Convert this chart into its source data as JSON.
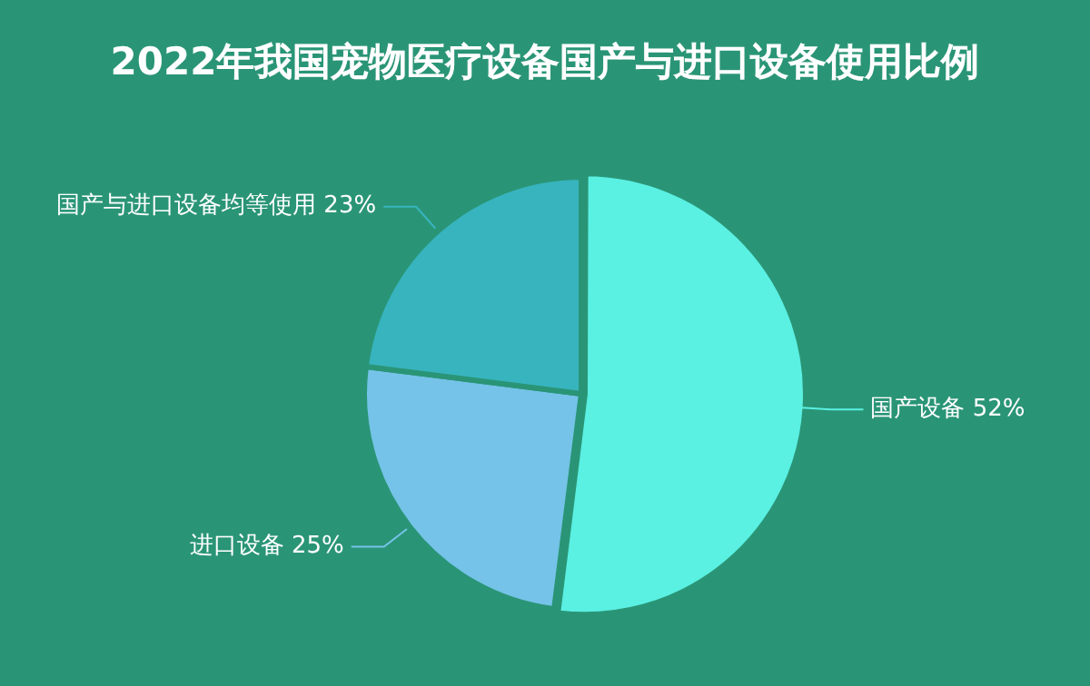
{
  "chart_data": {
    "type": "pie",
    "title": "2022年我国宠物医疗设备国产与进口设备使用比例",
    "categories": [
      "国产设备",
      "进口设备",
      "国产与进口设备均等使用"
    ],
    "values": [
      52,
      25,
      23
    ],
    "colors": [
      "#5af0e2",
      "#75c3e8",
      "#37b4be"
    ],
    "value_labels": [
      "52%",
      "25%",
      "23%"
    ],
    "legend": false
  }
}
